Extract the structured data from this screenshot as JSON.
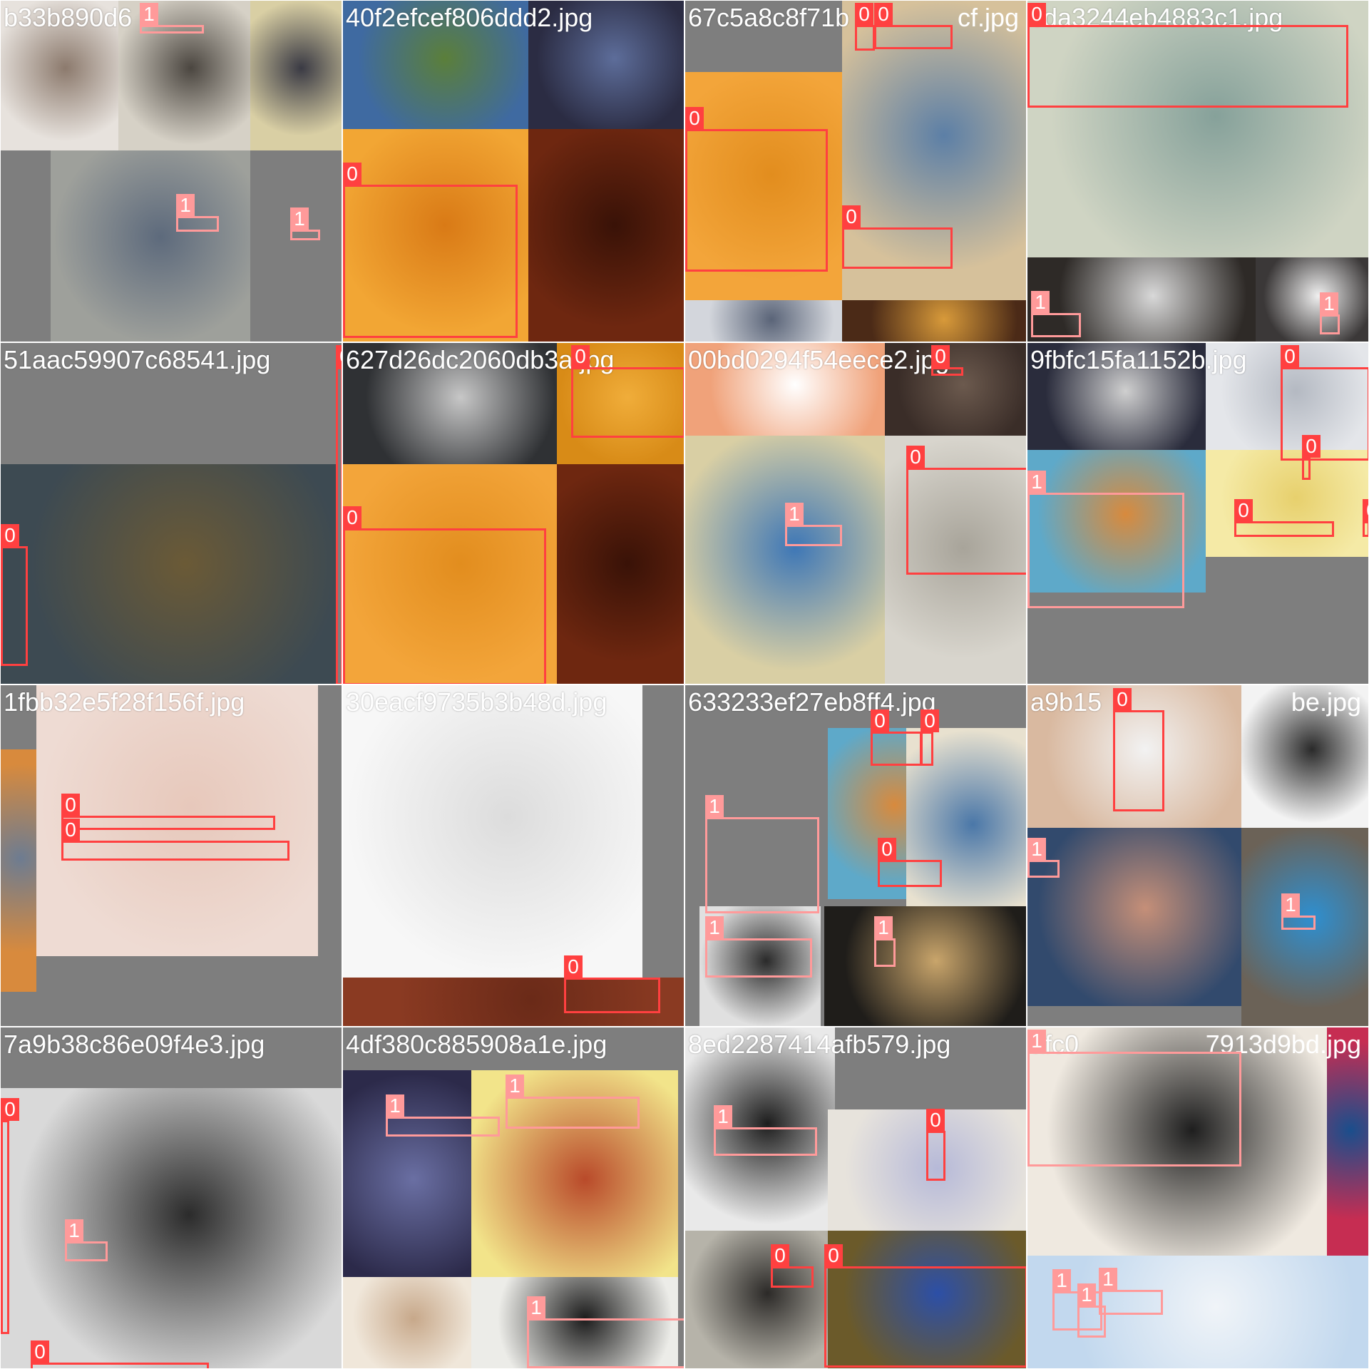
{
  "colors": {
    "class_0": "#ff4040",
    "class_1": "#ff9a9a",
    "background": "#7e7e7e"
  },
  "tiles": [
    {
      "title": "b33b890d6",
      "photos": [
        {
          "c": "#e7e2dd",
          "g": "#8c7a6d"
        },
        {
          "c": "#d6d1c6",
          "g": "#4b4640"
        },
        {
          "c": "#d9cfa4",
          "g": "#3a3a44"
        },
        {
          "c": "#9ea09b",
          "g": "#5d6a7c"
        }
      ],
      "boxes": [
        {
          "label": "1",
          "cls": 1
        },
        {
          "label": "1",
          "cls": 1
        },
        {
          "label": "1",
          "cls": 1
        }
      ]
    },
    {
      "title": "40f2efcef806ddd2.jpg",
      "photos": [
        {
          "c": "#3f6aa1",
          "g": "#5b7f3a"
        },
        {
          "c": "#2b2c43",
          "g": "#5d6d9a"
        },
        {
          "c": "#f2a634",
          "g": "#d97a16"
        },
        {
          "c": "#6e2710",
          "g": "#391207"
        }
      ],
      "boxes": [
        {
          "label": "0",
          "cls": 0
        }
      ]
    },
    {
      "title": "67c5a8c8f71b",
      "title_tail": "cf.jpg",
      "photos": [
        {
          "c": "#f3a53a",
          "g": "#e28d1e"
        },
        {
          "c": "#d6c19b",
          "g": "#5c7fa6"
        },
        {
          "c": "#d3d6dc",
          "g": "#5a6478"
        },
        {
          "c": "#4b2a17",
          "g": "#d89a3a"
        }
      ],
      "boxes": [
        {
          "label": "0",
          "cls": 0
        },
        {
          "label": "0",
          "cls": 0
        },
        {
          "label": "0",
          "cls": 0
        },
        {
          "label": "0",
          "cls": 0
        }
      ]
    },
    {
      "title": "cda3244eb4883c1.jpg",
      "photos": [
        {
          "c": "#cfd4c3",
          "g": "#86a19a"
        },
        {
          "c": "#2e2a27",
          "g": "#d8d8d8"
        },
        {
          "c": "#3b3838",
          "g": "#f0f0f0"
        }
      ],
      "boxes": [
        {
          "label": "0",
          "cls": 0
        },
        {
          "label": "1",
          "cls": 1
        },
        {
          "label": "1",
          "cls": 1
        }
      ]
    },
    {
      "title": "51aac59907c68541.jpg",
      "photos": [
        {
          "c": "#3d4a52",
          "g": "#6b5a36"
        }
      ],
      "boxes": [
        {
          "label": "0",
          "cls": 0
        },
        {
          "label": "0",
          "cls": 0
        }
      ]
    },
    {
      "title": "627d26dc2060db3a.jpg",
      "photos": [
        {
          "c": "#2f3134",
          "g": "#c7c7c7"
        },
        {
          "c": "#d88b17",
          "g": "#f0ad3a"
        },
        {
          "c": "#f3a53a",
          "g": "#e28d1e"
        },
        {
          "c": "#6e2710",
          "g": "#391207"
        }
      ],
      "boxes": [
        {
          "label": "0",
          "cls": 0
        },
        {
          "label": "0",
          "cls": 0
        }
      ]
    },
    {
      "title": "00bd0294f54eece2.jpg",
      "photos": [
        {
          "c": "#f0a27a",
          "g": "#ffffff"
        },
        {
          "c": "#3a2d28",
          "g": "#6c5a4e"
        },
        {
          "c": "#d9cfa4",
          "g": "#3e77b6"
        },
        {
          "c": "#d8d5cd",
          "g": "#a8a49a"
        }
      ],
      "boxes": [
        {
          "label": "0",
          "cls": 0
        },
        {
          "label": "0",
          "cls": 0
        },
        {
          "label": "1",
          "cls": 1
        }
      ]
    },
    {
      "title": "9fbfc15fa1152b.jpg",
      "photos": [
        {
          "c": "#2a2c3c",
          "g": "#cfcfcf"
        },
        {
          "c": "#e4e6ea",
          "g": "#b4b9c2"
        },
        {
          "c": "#5ea9c9",
          "g": "#d88a3d"
        },
        {
          "c": "#f5eaa6",
          "g": "#e7d06d"
        }
      ],
      "boxes": [
        {
          "label": "0",
          "cls": 0
        },
        {
          "label": "0",
          "cls": 0
        },
        {
          "label": "1",
          "cls": 1
        },
        {
          "label": "0",
          "cls": 0
        },
        {
          "label": "0",
          "cls": 0
        }
      ]
    },
    {
      "title": "1fbb32e5f28f156f.jpg",
      "photos": [
        {
          "c": "#d88a3d",
          "g": "#6d7c91"
        },
        {
          "c": "#eedbd3",
          "g": "#e7c8bb"
        }
      ],
      "boxes": [
        {
          "label": "0",
          "cls": 0
        },
        {
          "label": "0",
          "cls": 0
        }
      ]
    },
    {
      "title": "30eacf9735b3b48d.jpg",
      "photos": [
        {
          "c": "#f7f7f7",
          "g": "#dcdcdc"
        },
        {
          "c": "#8a3a22",
          "g": "#6a2a18"
        }
      ],
      "boxes": [
        {
          "label": "0",
          "cls": 0
        }
      ]
    },
    {
      "title": "633233ef27eb8ff4.jpg",
      "photos": [
        {
          "c": "#d8c9a6",
          "g": "#3d2e22"
        },
        {
          "c": "#5ea9c9",
          "g": "#d88a3d"
        },
        {
          "c": "#e8e1cf",
          "g": "#4a77a8"
        },
        {
          "c": "#e0e0e0",
          "g": "#2a2a2a"
        },
        {
          "c": "#1f1d1a",
          "g": "#c9a56b"
        }
      ],
      "boxes": [
        {
          "label": "0",
          "cls": 0
        },
        {
          "label": "0",
          "cls": 0
        },
        {
          "label": "0",
          "cls": 0
        },
        {
          "label": "1",
          "cls": 1
        },
        {
          "label": "1",
          "cls": 1
        },
        {
          "label": "1",
          "cls": 1
        }
      ]
    },
    {
      "title": "a9b15",
      "title_tail": "be.jpg",
      "photos": [
        {
          "c": "#d9b9a0",
          "g": "#f2f2f2"
        },
        {
          "c": "#f3f3f3",
          "g": "#2a2a2a"
        },
        {
          "c": "#324a6d",
          "g": "#c58f78"
        },
        {
          "c": "#6b6257",
          "g": "#2e8fd0"
        }
      ],
      "boxes": [
        {
          "label": "0",
          "cls": 0
        },
        {
          "label": "1",
          "cls": 1
        },
        {
          "label": "1",
          "cls": 1
        }
      ]
    },
    {
      "title": "7a9b38c86e09f4e3.jpg",
      "photos": [
        {
          "c": "#d9d9d9",
          "g": "#2b2b2b"
        }
      ],
      "boxes": [
        {
          "label": "0",
          "cls": 0
        },
        {
          "label": "1",
          "cls": 1
        },
        {
          "label": "0",
          "cls": 0
        }
      ]
    },
    {
      "title": "4df380c885908a1e.jpg",
      "photos": [
        {
          "c": "#2c2a4a",
          "g": "#6a6fa3"
        },
        {
          "c": "#f2e48a",
          "g": "#b94a2a"
        },
        {
          "c": "#f0e7da",
          "g": "#c7a88a"
        },
        {
          "c": "#ecece8",
          "g": "#1b1b1b"
        }
      ],
      "boxes": [
        {
          "label": "1",
          "cls": 1
        },
        {
          "label": "1",
          "cls": 1
        },
        {
          "label": "1",
          "cls": 1
        }
      ]
    },
    {
      "title": "8ed2287414afb579.jpg",
      "photos": [
        {
          "c": "#e9e9e9",
          "g": "#1d1d1d"
        },
        {
          "c": "#e7e3dc",
          "g": "#b6b9d8"
        },
        {
          "c": "#b6b3a9",
          "g": "#2c2a28"
        },
        {
          "c": "#6b5a2a",
          "g": "#2c4fa7"
        }
      ],
      "boxes": [
        {
          "label": "1",
          "cls": 1
        },
        {
          "label": "0",
          "cls": 0
        },
        {
          "label": "0",
          "cls": 0
        },
        {
          "label": "0",
          "cls": 0
        }
      ]
    },
    {
      "title": "afc0",
      "title_tail": "7913d9bd.jpg",
      "photos": [
        {
          "c": "#efe9e0",
          "g": "#1e1e1e"
        },
        {
          "c": "#c62d52",
          "g": "#1a4e8c"
        },
        {
          "c": "#c2d8ee",
          "g": "#f0f4f8"
        }
      ],
      "boxes": [
        {
          "label": "1",
          "cls": 1
        },
        {
          "label": "1",
          "cls": 1
        },
        {
          "label": "1",
          "cls": 1
        },
        {
          "label": "1",
          "cls": 1
        }
      ]
    }
  ]
}
